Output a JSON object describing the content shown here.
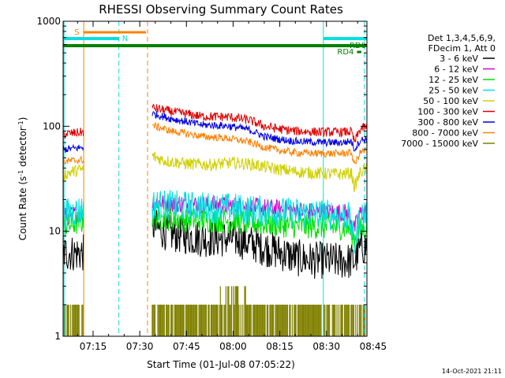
{
  "chart_data": {
    "type": "line",
    "title": "RHESSI Observing Summary Count Rates",
    "xlabel": "Start Time (01-Jul-08 07:05:22)",
    "ylabel_main": "Count Rate (s",
    "ylabel_sup1": "-1",
    "ylabel_mid": " detector",
    "ylabel_sup2": "-1",
    "ylabel_end": ")",
    "yscale": "log",
    "ylim": [
      1,
      1000
    ],
    "xlim_minutes": [
      5.37,
      103.0
    ],
    "x_ticks": [
      {
        "minutes": 15,
        "label": "07:15"
      },
      {
        "minutes": 30,
        "label": "07:30"
      },
      {
        "minutes": 45,
        "label": "07:45"
      },
      {
        "minutes": 60,
        "label": "08:00"
      },
      {
        "minutes": 75,
        "label": "08:15"
      },
      {
        "minutes": 90,
        "label": "08:30"
      },
      {
        "minutes": 105,
        "label": "08:45"
      }
    ],
    "y_ticks": [
      {
        "value": 1,
        "label": "1"
      },
      {
        "value": 10,
        "label": "10"
      },
      {
        "value": 100,
        "label": "100"
      },
      {
        "value": 1000,
        "label": "1000"
      }
    ],
    "legend_header": [
      "Det 1,3,4,5,6,9,",
      "FDecim 1, Att 0"
    ],
    "legend_position": "right",
    "series": [
      {
        "name": "3 - 6 keV",
        "color": "#000000",
        "noise": 0.06,
        "segments": [
          {
            "x": [
              5.4,
              12.0
            ],
            "y": [
              6.2,
              6.2
            ]
          },
          {
            "x": [
              34.0,
              36,
              40,
              45,
              50,
              55,
              60,
              65,
              70,
              75,
              80,
              85,
              88,
              93,
              99,
              101,
              103
            ],
            "y": [
              11.5,
              10.5,
              9.5,
              9.0,
              8.5,
              8.5,
              8.5,
              7.8,
              7.0,
              6.3,
              5.6,
              5.3,
              5.3,
              5.2,
              5.2,
              7.0,
              7.2
            ]
          }
        ]
      },
      {
        "name": "6 - 12 keV",
        "color": "#d000d0",
        "noise": 0.03,
        "segments": [
          {
            "x": [
              5.4,
              12.0
            ],
            "y": [
              13.8,
              15.0
            ]
          },
          {
            "x": [
              34.0,
              40,
              50,
              60,
              70,
              80,
              88,
              97,
              99,
              101,
              103
            ],
            "y": [
              19.0,
              18.5,
              18.0,
              17.5,
              16.8,
              15.8,
              15.2,
              15.0,
              10.5,
              15.0,
              15.2
            ]
          }
        ]
      },
      {
        "name": "12 - 25 keV",
        "color": "#00e000",
        "noise": 0.04,
        "segments": [
          {
            "x": [
              5.4,
              12.0
            ],
            "y": [
              11.0,
              12.5
            ]
          },
          {
            "x": [
              34.0,
              40,
              50,
              60,
              70,
              80,
              88,
              97,
              99,
              101,
              103
            ],
            "y": [
              14.0,
              13.2,
              12.8,
              12.5,
              11.8,
              11.2,
              11.0,
              10.8,
              8.5,
              10.5,
              11.0
            ]
          }
        ]
      },
      {
        "name": "25 - 50 keV",
        "color": "#00e0e0",
        "noise": 0.05,
        "segments": [
          {
            "x": [
              5.4,
              12.0
            ],
            "y": [
              14.5,
              16.0
            ]
          },
          {
            "x": [
              34.0,
              40,
              50,
              60,
              70,
              80,
              88,
              97,
              99,
              101,
              103
            ],
            "y": [
              18.0,
              17.5,
              17.0,
              16.5,
              15.5,
              14.8,
              14.5,
              14.2,
              7.0,
              14.0,
              14.5
            ]
          }
        ]
      },
      {
        "name": "50 - 100 keV",
        "color": "#d0d000",
        "noise": 0.02,
        "segments": [
          {
            "x": [
              5.4,
              8,
              12.0
            ],
            "y": [
              34.0,
              37.0,
              39.0
            ]
          },
          {
            "x": [
              34.0,
              38,
              45,
              52,
              60,
              66,
              72,
              80,
              88,
              95,
              98,
              99,
              101,
              103
            ],
            "y": [
              52.0,
              47.0,
              44.0,
              43.0,
              45.0,
              43.5,
              40.0,
              37.0,
              35.5,
              35.0,
              36.0,
              26.0,
              37.0,
              39.0
            ]
          }
        ]
      },
      {
        "name": "100 - 300 keV",
        "color": "#e00000",
        "noise": 0.015,
        "segments": [
          {
            "x": [
              5.4,
              12.0
            ],
            "y": [
              84.0,
              88.0
            ]
          },
          {
            "x": [
              34.0,
              40,
              50,
              58,
              65,
              70,
              75,
              80,
              88,
              95,
              98,
              99,
              101,
              103
            ],
            "y": [
              150.0,
              138.0,
              124.0,
              123.0,
              115.0,
              100.0,
              94.0,
              90.0,
              88.0,
              88.0,
              89.0,
              70.0,
              95.0,
              99.0
            ]
          }
        ]
      },
      {
        "name": "300 - 800 keV",
        "color": "#0000e0",
        "noise": 0.012,
        "segments": [
          {
            "x": [
              5.4,
              12.0
            ],
            "y": [
              60.0,
              63.0
            ]
          },
          {
            "x": [
              34.0,
              40,
              50,
              58,
              65,
              70,
              75,
              80,
              88,
              95,
              98,
              99,
              101,
              103
            ],
            "y": [
              132.0,
              118.0,
              103.0,
              101.0,
              93.0,
              80.0,
              75.0,
              72.0,
              70.0,
              70.0,
              72.0,
              60.0,
              74.0,
              76.0
            ]
          }
        ]
      },
      {
        "name": "800 - 7000 keV",
        "color": "#ff8000",
        "noise": 0.012,
        "segments": [
          {
            "x": [
              5.4,
              12.0
            ],
            "y": [
              46.0,
              48.0
            ]
          },
          {
            "x": [
              34.0,
              40,
              50,
              58,
              65,
              70,
              75,
              80,
              88,
              95,
              98,
              99,
              101,
              103
            ],
            "y": [
              102.0,
              90.0,
              80.0,
              77.0,
              71.0,
              63.0,
              59.0,
              56.0,
              55.0,
              55.0,
              56.0,
              43.0,
              57.0,
              59.0
            ]
          }
        ]
      },
      {
        "name": "7000 - 15000 keV",
        "color": "#808000",
        "noise": 0,
        "segments": []
      }
    ],
    "shaded_intervals": [
      {
        "label": "S",
        "color": "#ff8000",
        "x": [
          12.0,
          32.0
        ]
      },
      {
        "label": "N",
        "color": "#00e0e0",
        "x": [
          5.4,
          23.3
        ]
      },
      {
        "label": "N",
        "color": "#00e0e0",
        "x": [
          89.0,
          103.0
        ]
      },
      {
        "label": "RD0",
        "color": "#008000",
        "x": [
          5.4,
          103.0
        ]
      },
      {
        "label": "RD4",
        "color": "#008000",
        "x": [
          99.8,
          101.2
        ]
      }
    ],
    "interval_marker_values": [
      {
        "minutes": 12.0,
        "color": "#ff8000"
      },
      {
        "minutes": 23.3,
        "color": "#00e0e0"
      },
      {
        "minutes": 32.5,
        "color": "#ff8000"
      },
      {
        "minutes": 89.0,
        "color": "#00e0e0"
      },
      {
        "minutes": 102.2,
        "color": "#00e0e0"
      }
    ],
    "footer_timestamp": "14-Oct-2021 21:11"
  }
}
